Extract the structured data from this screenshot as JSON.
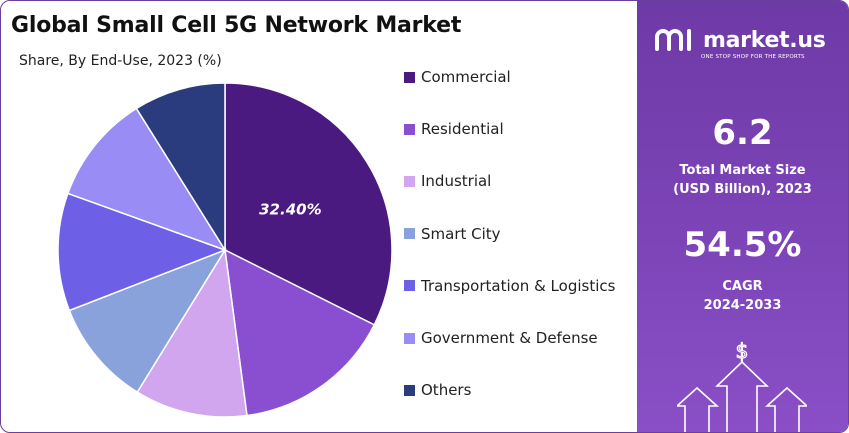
{
  "header": {
    "title": "Global Small Cell 5G Network Market",
    "subtitle": "Share, By End-Use, 2023 (%)"
  },
  "chart_data": {
    "type": "pie",
    "title": "Global Small Cell 5G Network Market",
    "subtitle": "Share, By End-Use, 2023 (%)",
    "slices": [
      {
        "name": "Commercial",
        "value": 32.4,
        "color": "#4a1a80",
        "label": "32.40%"
      },
      {
        "name": "Residential",
        "value": 15.5,
        "color": "#8a4fd0",
        "label": ""
      },
      {
        "name": "Industrial",
        "value": 10.9,
        "color": "#d2a6ee",
        "label": ""
      },
      {
        "name": "Smart City",
        "value": 10.3,
        "color": "#8aa2dc",
        "label": ""
      },
      {
        "name": "Transportation & Logistics",
        "value": 11.4,
        "color": "#6e60e6",
        "label": ""
      },
      {
        "name": "Government & Defense",
        "value": 10.6,
        "color": "#9a8cf5",
        "label": ""
      },
      {
        "name": "Others",
        "value": 8.9,
        "color": "#2b3c7e",
        "label": ""
      }
    ],
    "legend_position": "right"
  },
  "sidebar": {
    "brand": "market.us",
    "tagline": "ONE STOP SHOP FOR THE REPORTS",
    "market_size_value": "6.2",
    "market_size_label_1": "Total Market Size",
    "market_size_label_2": "(USD Billion), 2023",
    "cagr_value": "54.5%",
    "cagr_label_1": "CAGR",
    "cagr_label_2": "2024-2033",
    "dollar_symbol": "$"
  },
  "colors": {
    "accent": "#6e3aa6",
    "frame": "#6a3fa0"
  }
}
